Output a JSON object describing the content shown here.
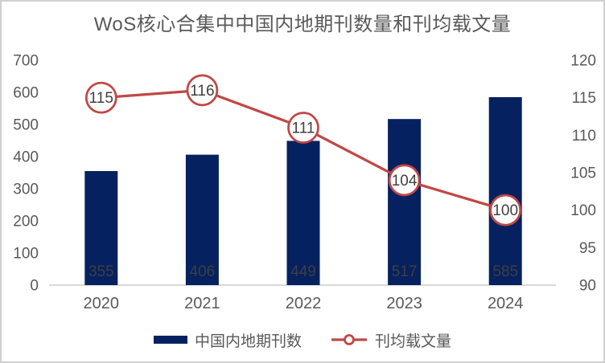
{
  "figure": {
    "border_color": "#d0d0d0",
    "background_color": "#ffffff"
  },
  "chart_data": {
    "type": "combo-bar-line",
    "title": "WoS核心合集中中国内地期刊数量和刊均载文量",
    "categories": [
      "2020",
      "2021",
      "2022",
      "2023",
      "2024"
    ],
    "series": [
      {
        "name": "中国内地期刊数",
        "type": "bar",
        "axis": "left",
        "values": [
          355,
          406,
          449,
          517,
          585
        ],
        "color": "#06215f",
        "data_labels": [
          "355",
          "406",
          "449",
          "517",
          "585"
        ],
        "label_color": "#3f3f3f",
        "label_position": "inside-base"
      },
      {
        "name": "刊均载文量",
        "type": "line",
        "axis": "right",
        "values": [
          115,
          116,
          111,
          104,
          100
        ],
        "color": "#c04845",
        "marker": "circle",
        "marker_fill": "#ffffff",
        "data_labels": [
          "115",
          "116",
          "111",
          "104",
          "100"
        ],
        "label_color": "#404040",
        "label_position": "in-marker"
      }
    ],
    "left_axis": {
      "min": 0,
      "max": 700,
      "step": 100,
      "ticks": [
        "0",
        "100",
        "200",
        "300",
        "400",
        "500",
        "600",
        "700"
      ]
    },
    "right_axis": {
      "min": 90,
      "max": 120,
      "step": 5,
      "ticks": [
        "90",
        "95",
        "100",
        "105",
        "110",
        "115",
        "120"
      ]
    },
    "axis_text_color": "#595959",
    "axis_line_color": "#d9d9d9",
    "gridlines": false,
    "legend_position": "bottom"
  }
}
